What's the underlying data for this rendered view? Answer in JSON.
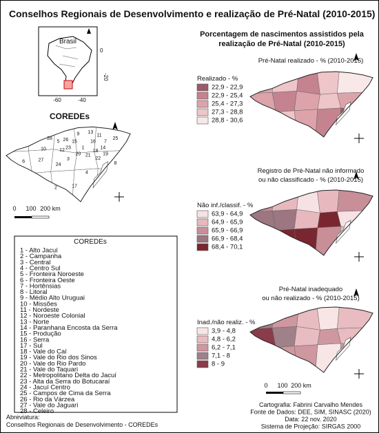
{
  "title": "Conselhos Regionais de Desenvolvimento e realização de Pré-Natal  (2010-2015)",
  "inset": {
    "label": "Brasil",
    "x_ticks": [
      "-60",
      "-40"
    ],
    "y_ticks": [
      "0",
      "-20"
    ]
  },
  "map_title": "COREDEs",
  "map_numbers": [
    "1",
    "2",
    "3",
    "4",
    "5",
    "6",
    "7",
    "8",
    "9",
    "10",
    "11",
    "12",
    "13",
    "14",
    "15",
    "16",
    "17",
    "18",
    "19",
    "20",
    "21",
    "22",
    "23",
    "24",
    "25",
    "26",
    "27",
    "28"
  ],
  "scale": [
    "0",
    "100",
    "200 km"
  ],
  "legend_box": {
    "title": "COREDEs",
    "items": [
      "1 - Alto Jacuí",
      "2 - Campanha",
      "3 - Central",
      "4 - Centro Sul",
      "5 - Fronteira Noroeste",
      "6 - Fronteira Oeste",
      "7 - Hortênsias",
      "8 - Litoral",
      "9 - Médio Alto Uruguai",
      "10 - Missões",
      "11 - Nordeste",
      "12 - Noroeste Colonial",
      "13 - Norte",
      "14 - Paranhana Encosta da Serra",
      "15 - Produção",
      "16 - Serra",
      "17 - Sul",
      "18 - Vale do Caí",
      "19 - Vale do Rio dos Sinos",
      "20 - Vale do Rio Pardo",
      "21 - Vale do Taquari",
      "22 - Metropolitano Delta do Jacuí",
      "23 - Alta da Serra do Botucaraí",
      "24 - Jacuí Centro",
      "25 - Campos de Cima da Serra",
      "26 - Rio da Várzea",
      "27 - Vale do Jaguari",
      "28 - Celeiro"
    ]
  },
  "abbreviation": [
    "Abreviatura:",
    "Conselhos Regionais de Desenvolvimento - COREDEs"
  ],
  "right_title": [
    "Porcentagem de nascimentos assistidos pela",
    "realização de Pré-Natal (2010-2015)"
  ],
  "maps": [
    {
      "subtitle": [
        "Pré-Natal realizado - % (2010-2015)"
      ],
      "legend_title": "Realizado - %",
      "classes": [
        {
          "label": "22,9 - 22,9",
          "color": "#9b5a6a"
        },
        {
          "label": "22,9 - 25,4",
          "color": "#c4838f"
        },
        {
          "label": "25,4 - 27,3",
          "color": "#dda3ab"
        },
        {
          "label": "27,3 - 28,8",
          "color": "#eec5c8"
        },
        {
          "label": "28,8 - 30,6",
          "color": "#f8e8e8"
        }
      ]
    },
    {
      "subtitle": [
        "Registro de Pré-Natal não  informado",
        "ou não classificado - % (2010-2015)"
      ],
      "legend_title": "Não inf./classif. - %",
      "classes": [
        {
          "label": "63,9 - 64,9",
          "color": "#f6e2e4"
        },
        {
          "label": "64,9 - 65,9",
          "color": "#e7b9be"
        },
        {
          "label": "65,9 - 66,9",
          "color": "#c88f98"
        },
        {
          "label": "66,9 - 68,4",
          "color": "#9c7680"
        },
        {
          "label": "68,4 - 70,1",
          "color": "#7a2630"
        }
      ]
    },
    {
      "subtitle": [
        "Pré-Natal inadequado",
        "ou não realizado - % (2010-2015)"
      ],
      "legend_title": "Inad./não realiz. - %",
      "classes": [
        {
          "label": "3,9 - 4,8",
          "color": "#f8e6e7"
        },
        {
          "label": "4,8 - 6,2",
          "color": "#e8bcc1"
        },
        {
          "label": "6,2 - 7,1",
          "color": "#cf97a0"
        },
        {
          "label": "7,1 - 8",
          "color": "#a08089"
        },
        {
          "label": "8 - 9",
          "color": "#8a3c4a"
        }
      ]
    }
  ],
  "map_scale": [
    "0",
    "100",
    "200 km"
  ],
  "credits": [
    "Cartografia: Fabrini Carvalho Mendes",
    "Fonte de Dados: DEE, SIM, SINASC (2020)",
    "Data: 22 nov. 2020",
    "Sistema de Projeção: SIRGAS 2000"
  ]
}
